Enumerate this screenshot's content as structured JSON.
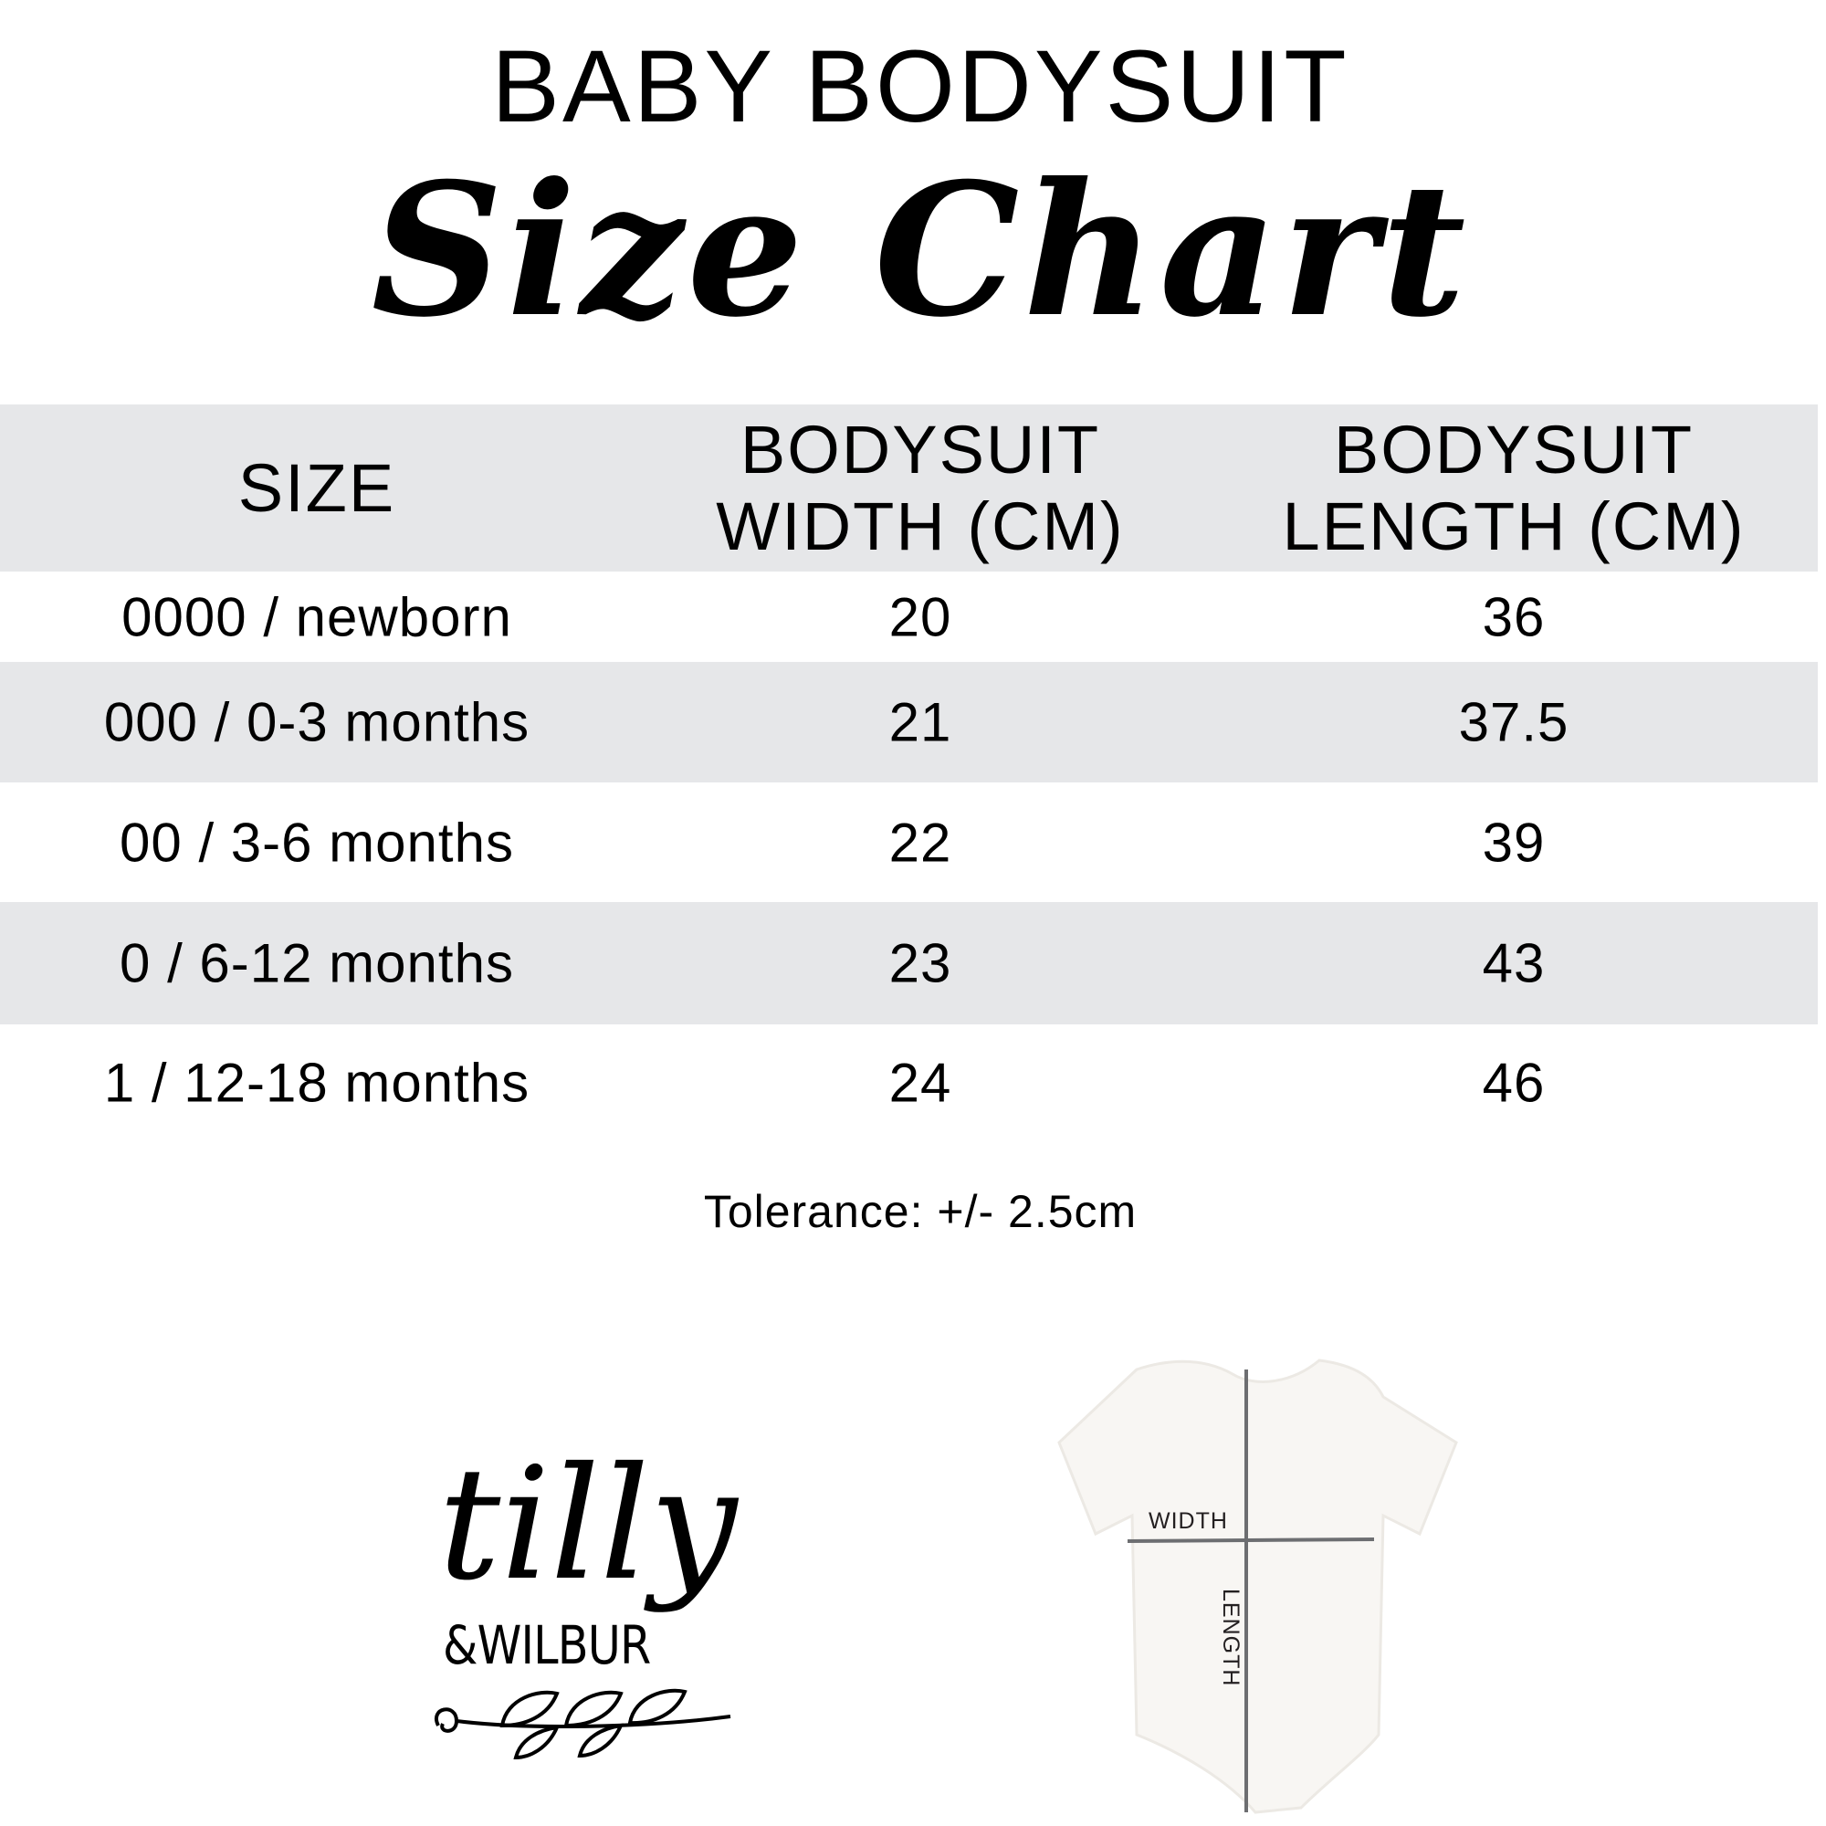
{
  "heading": "BABY BODYSUIT",
  "subheading": "Size Chart",
  "table": {
    "headers": [
      "SIZE",
      "BODYSUIT\nWIDTH (CM)",
      "BODYSUIT\nLENGTH (CM)"
    ],
    "header_lines": [
      [
        "SIZE"
      ],
      [
        "BODYSUIT",
        "WIDTH (CM)"
      ],
      [
        "BODYSUIT",
        "LENGTH (CM)"
      ]
    ],
    "rows": [
      [
        "0000 / newborn",
        "20",
        "36"
      ],
      [
        "000 / 0-3 months",
        "21",
        "37.5"
      ],
      [
        "00 / 3-6 months",
        "22",
        "39"
      ],
      [
        "0 / 6-12 months",
        "23",
        "43"
      ],
      [
        "1 / 12-18 months",
        "24",
        "46"
      ]
    ]
  },
  "tolerance": "Tolerance: +/- 2.5cm",
  "logo": {
    "line1": "tilly",
    "line2": "&WILBUR"
  },
  "diagram": {
    "width_label": "WIDTH",
    "length_label": "LENGTH"
  },
  "colors": {
    "row_stripe": "#e6e7e9",
    "text": "#000000",
    "measure_line": "#6d6e71"
  }
}
